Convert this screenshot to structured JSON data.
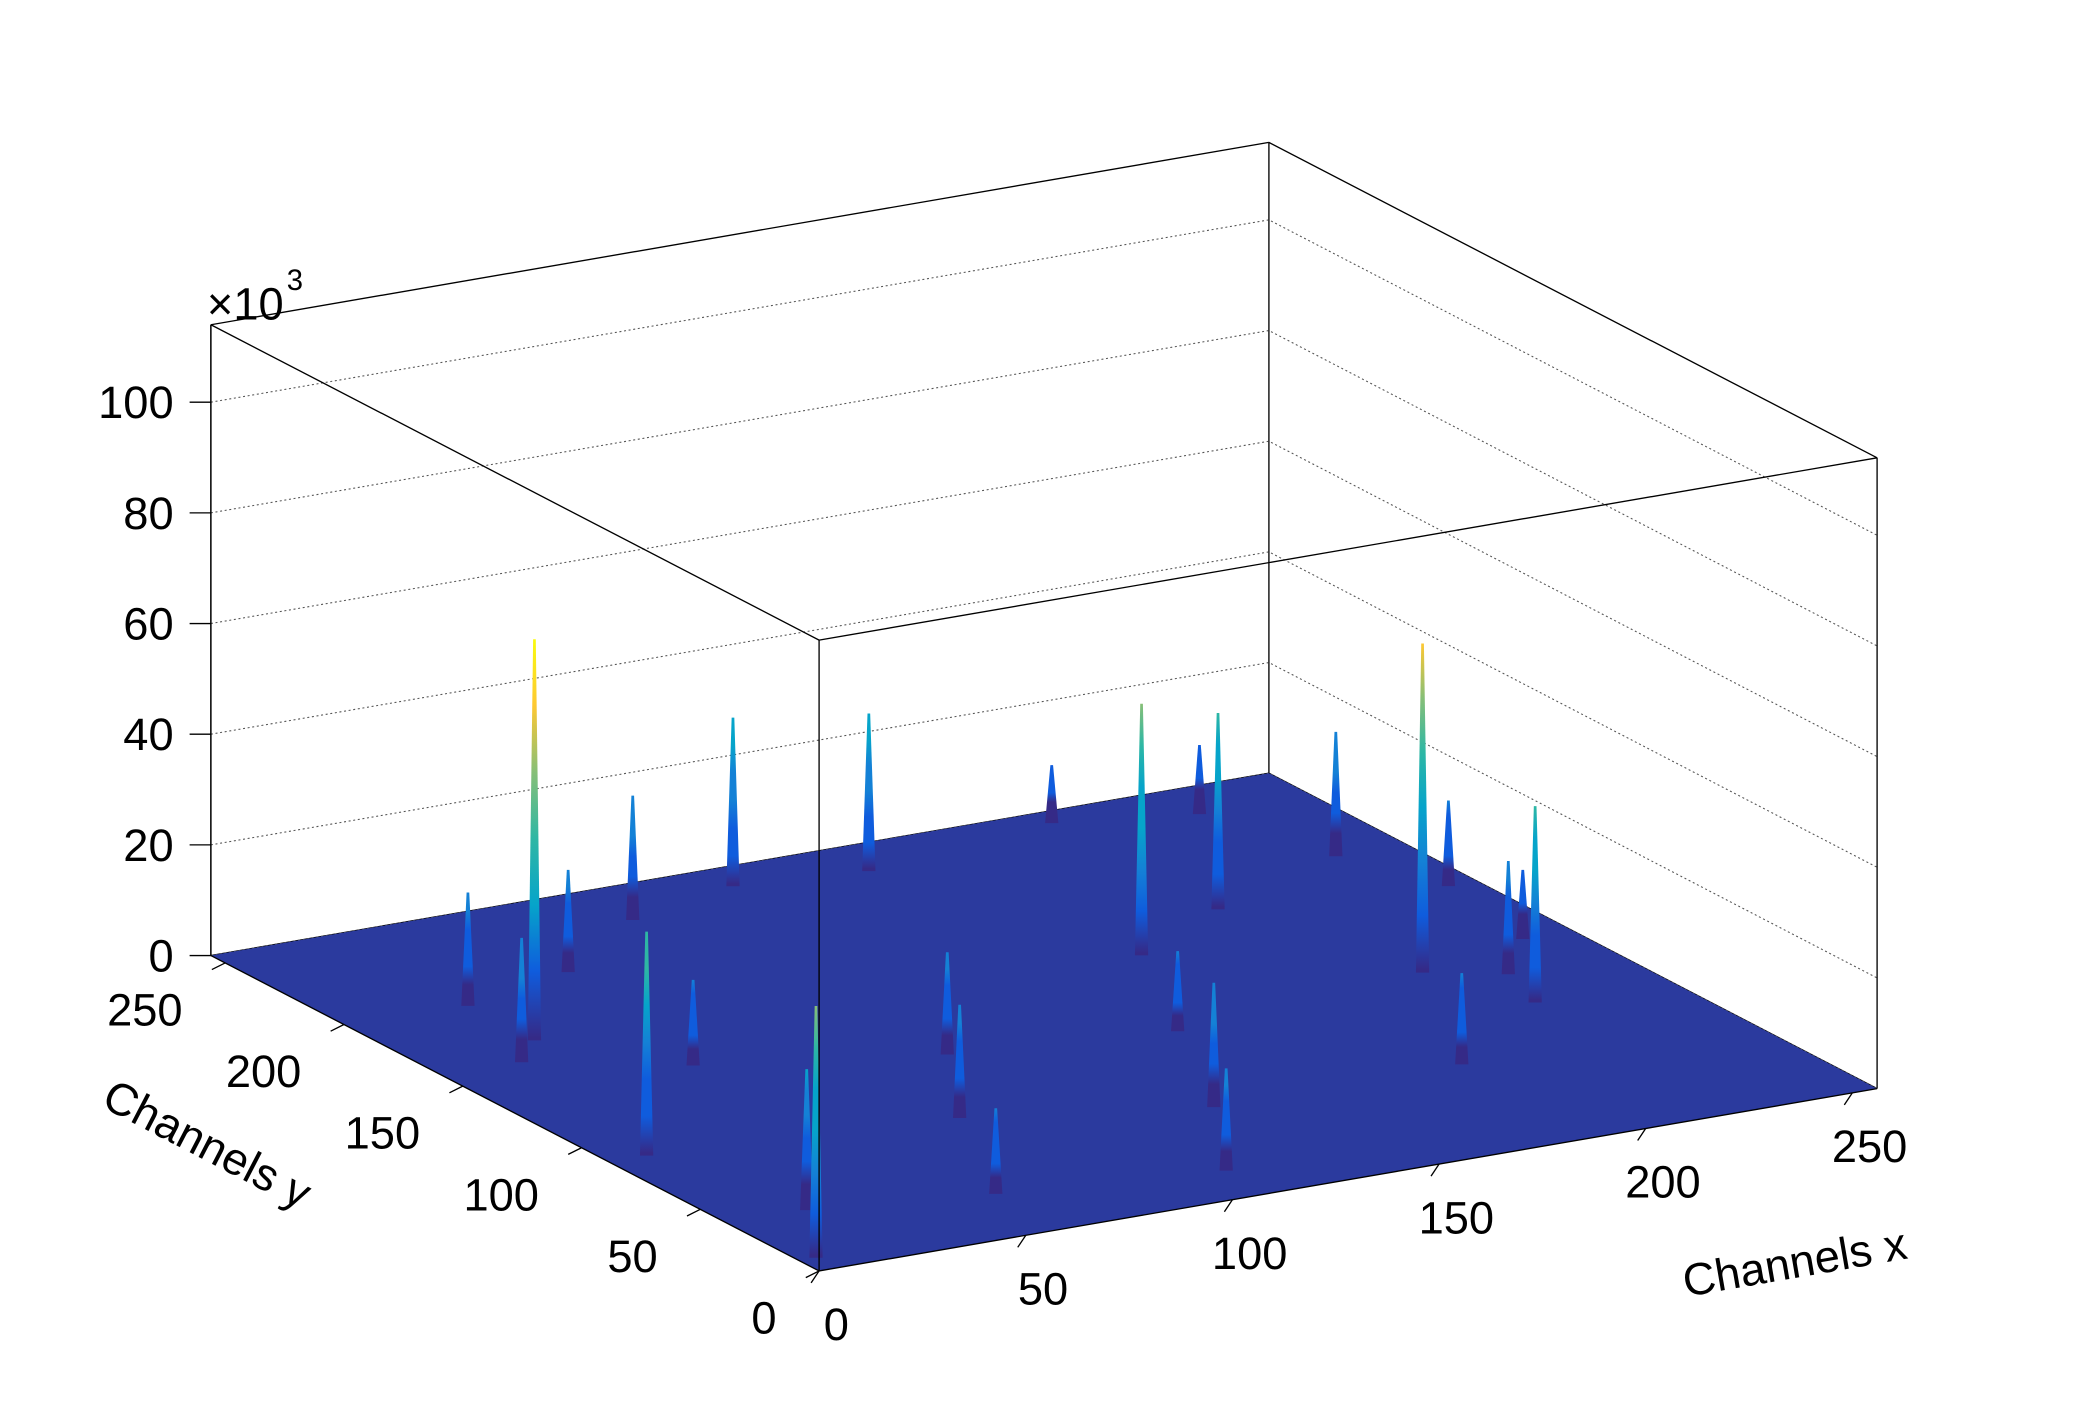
{
  "chart_data": {
    "type": "surface3d",
    "xlabel": "Channels x",
    "ylabel": "Channels y",
    "xlim": [
      0,
      256
    ],
    "ylim": [
      0,
      256
    ],
    "zlim": [
      0,
      114
    ],
    "xticks": [
      0,
      50,
      100,
      150,
      200,
      250
    ],
    "yticks": [
      0,
      50,
      100,
      150,
      200,
      250
    ],
    "zticks": [
      0,
      20,
      40,
      60,
      80,
      100
    ],
    "z_multiplier": "×10",
    "z_multiplier_exponent": "3",
    "grid": true,
    "floor_color": "#2b3a9e",
    "colormap": [
      "#352a87",
      "#0f5cdd",
      "#1481d6",
      "#06a4ca",
      "#2eb7a4",
      "#87bf77",
      "#d1bb59",
      "#fec832",
      "#f9fb0e"
    ],
    "peaks": {
      "x": [
        230,
        200,
        120,
        150,
        90,
        240,
        250,
        30,
        60,
        245,
        20,
        200,
        30,
        170,
        230,
        50,
        215,
        100,
        150,
        225,
        10,
        80,
        190,
        130,
        60,
        20,
        110,
        5
      ],
      "y": [
        240,
        250,
        245,
        240,
        235,
        200,
        170,
        200,
        210,
        130,
        160,
        180,
        172,
        160,
        110,
        140,
        120,
        120,
        110,
        90,
        90,
        80,
        60,
        60,
        30,
        40,
        20,
        10
      ],
      "z": [
        12,
        10,
        30,
        28,
        22,
        22,
        15,
        20,
        18,
        12,
        22,
        35,
        72,
        45,
        20,
        15,
        59,
        18,
        14,
        35,
        40,
        20,
        16,
        22,
        15,
        25,
        18,
        45
      ]
    }
  }
}
